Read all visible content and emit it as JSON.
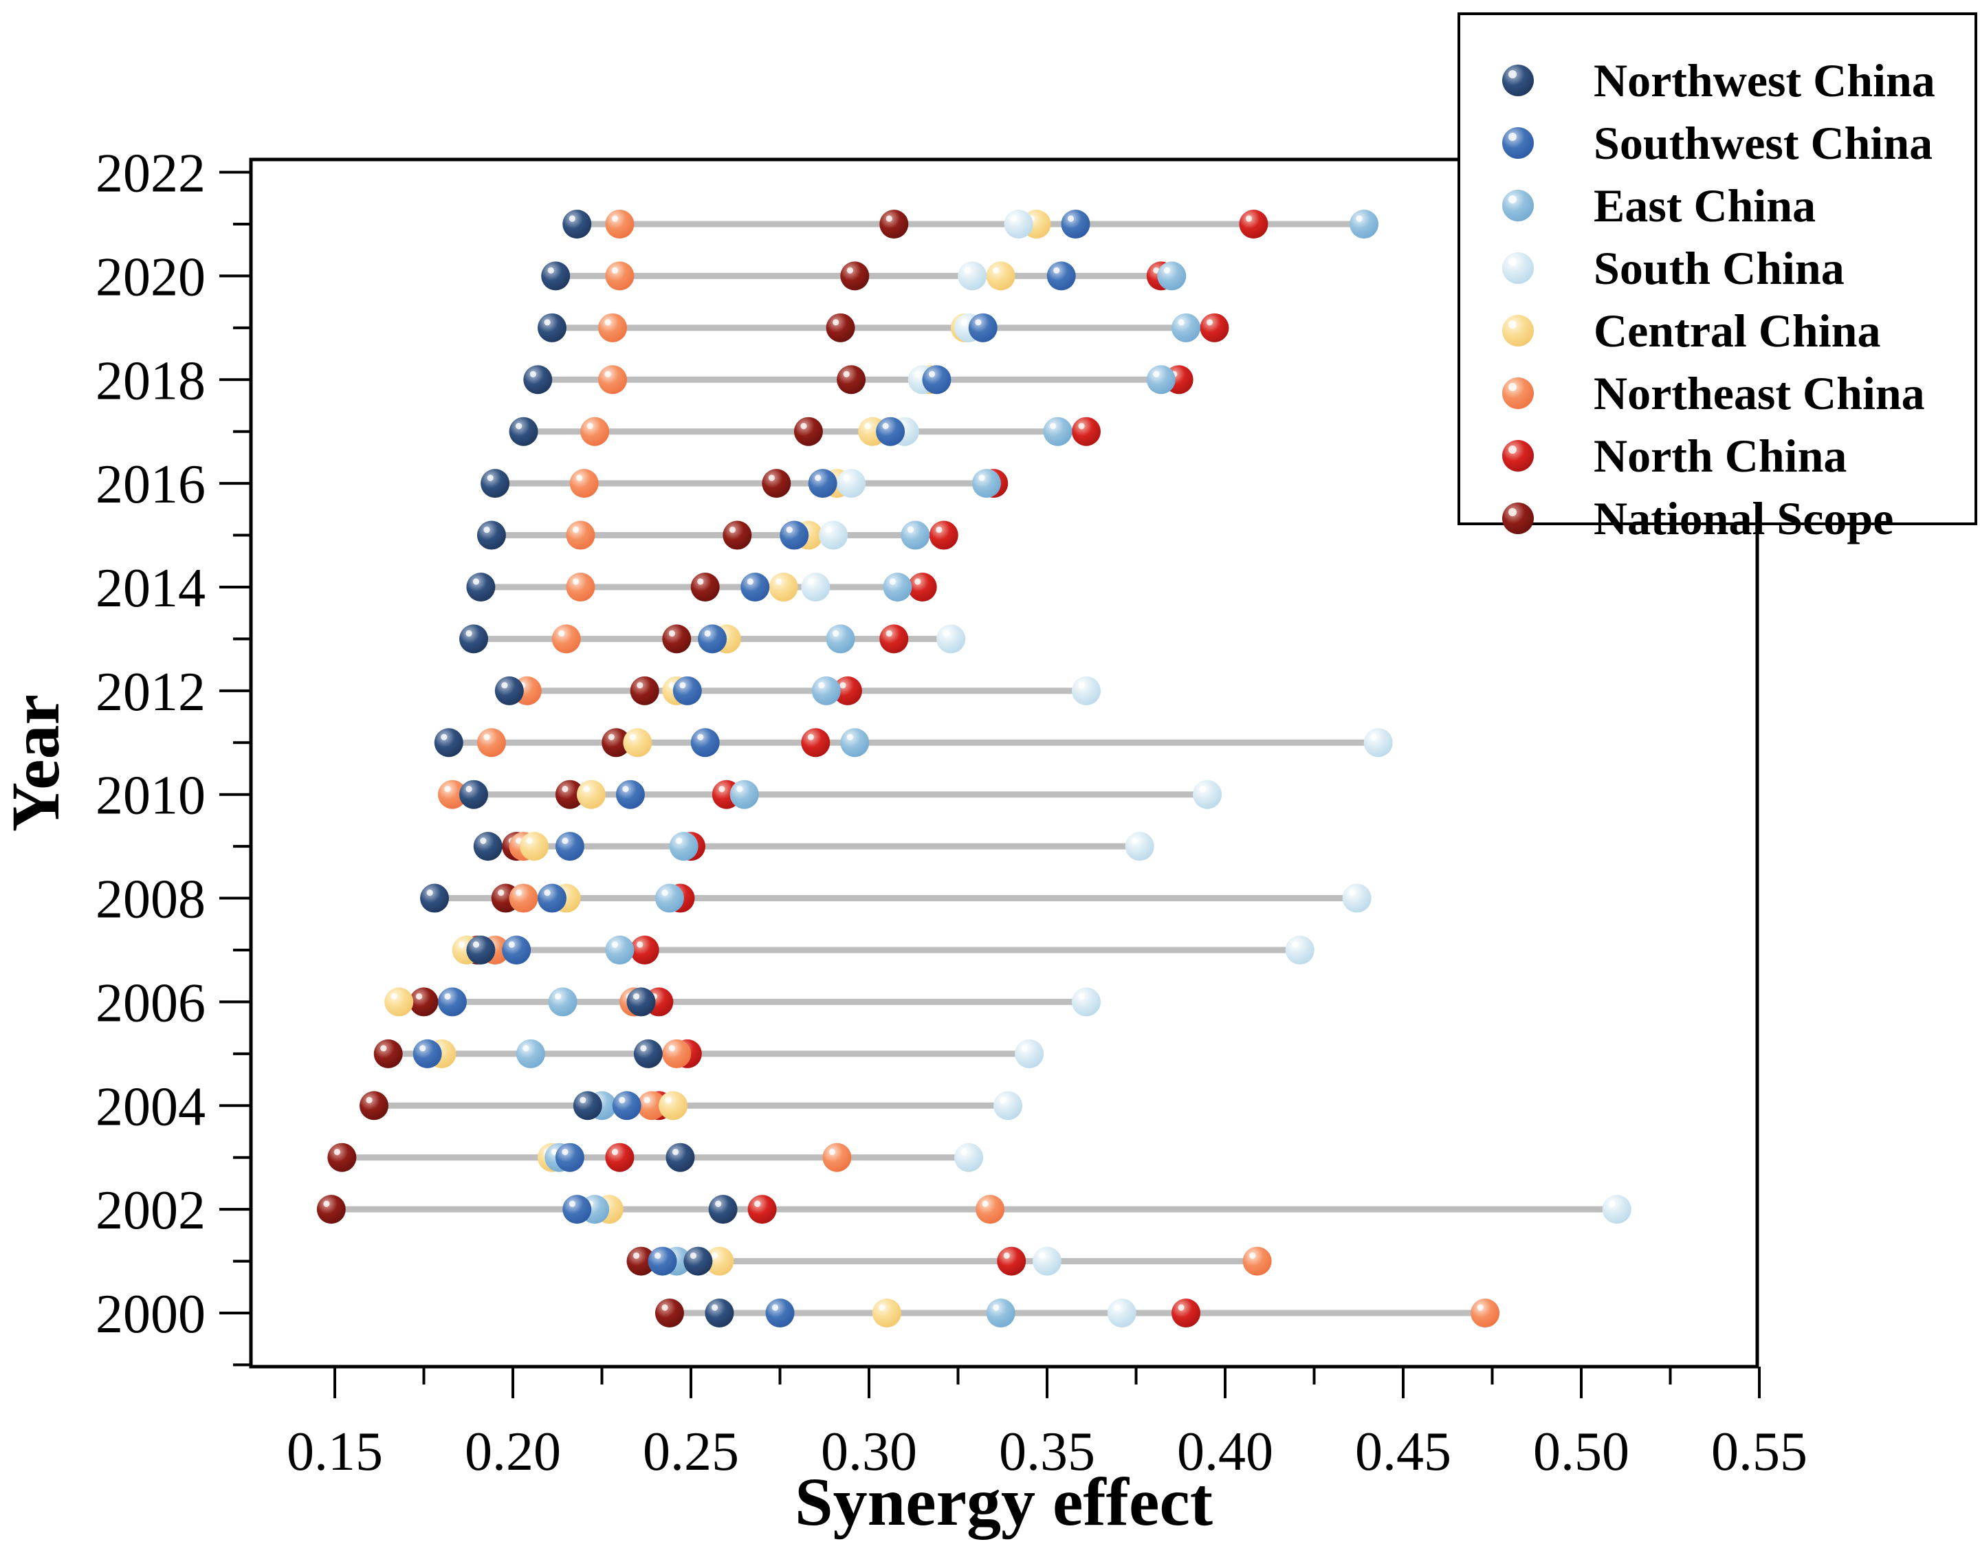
{
  "chart_data": {
    "type": "scatter",
    "title": "",
    "xlabel": "Synergy effect",
    "ylabel": "Year",
    "grid": false,
    "legend_position": "top-right",
    "xlim": [
      0.126,
      0.55
    ],
    "ylim": [
      1999,
      2022.3
    ],
    "x_ticks": [
      0.15,
      0.2,
      0.25,
      0.3,
      0.35,
      0.4,
      0.45,
      0.5,
      0.55
    ],
    "x_tick_labels": [
      "0.15",
      "0.20",
      "0.25",
      "0.30",
      "0.35",
      "0.40",
      "0.45",
      "0.50",
      "0.55"
    ],
    "x_minor_ticks": [
      0.175,
      0.225,
      0.275,
      0.325,
      0.375,
      0.425,
      0.475,
      0.525
    ],
    "y_major_ticks": [
      2000,
      2002,
      2004,
      2006,
      2008,
      2010,
      2012,
      2014,
      2016,
      2018,
      2020,
      2022
    ],
    "y_tick_labels": [
      "2000",
      "2002",
      "2004",
      "2006",
      "2008",
      "2010",
      "2012",
      "2014",
      "2016",
      "2018",
      "2020",
      "2022"
    ],
    "y_minor_ticks": [
      1999,
      2001,
      2003,
      2005,
      2007,
      2009,
      2011,
      2013,
      2015,
      2017,
      2019,
      2021
    ],
    "years": [
      2000,
      2001,
      2002,
      2003,
      2004,
      2005,
      2006,
      2007,
      2008,
      2009,
      2010,
      2011,
      2012,
      2013,
      2014,
      2015,
      2016,
      2017,
      2018,
      2019,
      2020,
      2021
    ],
    "connector_color": "#bdbdbd",
    "series": [
      {
        "name": "Northwest China",
        "color": {
          "light": "#b6c4d8",
          "mid": "#30507e",
          "dark": "#1d3459"
        },
        "values": [
          0.258,
          0.252,
          0.259,
          0.247,
          0.221,
          0.238,
          0.236,
          0.191,
          0.178,
          0.193,
          0.189,
          0.182,
          0.199,
          0.189,
          0.191,
          0.194,
          0.195,
          0.203,
          0.207,
          0.211,
          0.212,
          0.218
        ]
      },
      {
        "name": "Southwest China",
        "color": {
          "light": "#c4d5ec",
          "mid": "#4273b8",
          "dark": "#2b57a2"
        },
        "values": [
          0.275,
          0.242,
          0.218,
          0.216,
          0.232,
          0.176,
          0.183,
          0.201,
          0.211,
          0.216,
          0.233,
          0.254,
          0.249,
          0.256,
          0.268,
          0.279,
          0.287,
          0.306,
          0.319,
          0.332,
          0.354,
          0.358
        ]
      },
      {
        "name": "East China",
        "color": {
          "light": "#e8f2f9",
          "mid": "#94c1df",
          "dark": "#6fa7cf"
        },
        "values": [
          0.337,
          0.246,
          0.223,
          0.213,
          0.225,
          0.205,
          0.214,
          0.23,
          0.244,
          0.248,
          0.265,
          0.296,
          0.288,
          0.292,
          0.308,
          0.313,
          0.333,
          0.353,
          0.382,
          0.389,
          0.385,
          0.439
        ]
      },
      {
        "name": "South China",
        "color": {
          "light": "#ffffff",
          "mid": "#daebf4",
          "dark": "#b7d7e9"
        },
        "values": [
          0.371,
          0.35,
          0.51,
          0.328,
          0.339,
          0.345,
          0.361,
          0.421,
          0.437,
          0.376,
          0.395,
          0.443,
          0.361,
          0.323,
          0.285,
          0.29,
          0.295,
          0.31,
          0.315,
          0.328,
          0.329,
          0.342
        ]
      },
      {
        "name": "Central China",
        "color": {
          "light": "#fff7e0",
          "mid": "#fadc92",
          "dark": "#f2c567"
        },
        "values": [
          0.305,
          0.258,
          0.227,
          0.211,
          0.245,
          0.18,
          0.168,
          0.187,
          0.215,
          0.206,
          0.222,
          0.235,
          0.246,
          0.26,
          0.276,
          0.283,
          0.291,
          0.301,
          0.317,
          0.327,
          0.337,
          0.347
        ]
      },
      {
        "name": "Northeast China",
        "color": {
          "light": "#fde5d6",
          "mid": "#f68f5f",
          "dark": "#ee6f3e"
        },
        "values": [
          0.473,
          0.409,
          0.334,
          0.291,
          0.239,
          0.246,
          0.234,
          0.195,
          0.203,
          0.203,
          0.183,
          0.194,
          0.204,
          0.215,
          0.219,
          0.219,
          0.22,
          0.223,
          0.228,
          0.228,
          0.23,
          0.23
        ]
      },
      {
        "name": "North China",
        "color": {
          "light": "#f5b5ab",
          "mid": "#d62320",
          "dark": "#a91210"
        },
        "values": [
          0.389,
          0.34,
          0.27,
          0.23,
          0.241,
          0.249,
          0.241,
          0.237,
          0.247,
          0.25,
          0.26,
          0.285,
          0.294,
          0.307,
          0.315,
          0.321,
          0.335,
          0.361,
          0.387,
          0.397,
          0.382,
          0.408
        ]
      },
      {
        "name": "National Scope",
        "color": {
          "light": "#dea49d",
          "mid": "#8f1d17",
          "dark": "#65100c"
        },
        "values": [
          0.244,
          0.236,
          0.149,
          0.152,
          0.161,
          0.165,
          0.175,
          0.19,
          0.198,
          0.201,
          0.216,
          0.229,
          0.237,
          0.246,
          0.254,
          0.263,
          0.274,
          0.283,
          0.295,
          0.292,
          0.296,
          0.307
        ]
      }
    ],
    "draw_order": [
      "National Scope",
      "North China",
      "Northeast China",
      "Central China",
      "South China",
      "East China",
      "Southwest China",
      "Northwest China"
    ]
  }
}
